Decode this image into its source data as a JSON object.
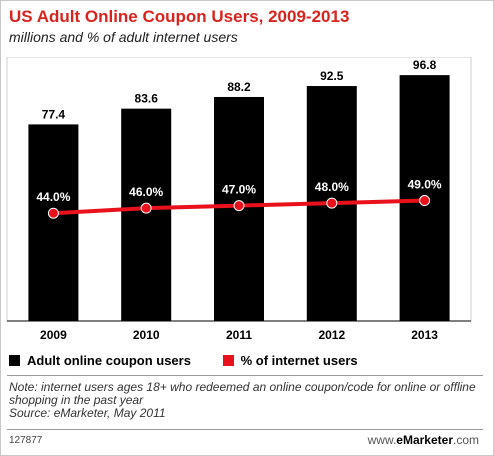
{
  "header": {
    "title": "US Adult Online Coupon Users, 2009-2013",
    "subtitle": "millions and % of adult internet users"
  },
  "chart_data": {
    "type": "bar",
    "categories": [
      "2009",
      "2010",
      "2011",
      "2012",
      "2013"
    ],
    "series": [
      {
        "name": "Adult online coupon users",
        "kind": "bar",
        "values": [
          77.4,
          83.6,
          88.2,
          92.5,
          96.8
        ],
        "labels": [
          "77.4",
          "83.6",
          "88.2",
          "92.5",
          "96.8"
        ],
        "color": "#000000"
      },
      {
        "name": "% of internet users",
        "kind": "line",
        "values": [
          44.0,
          46.0,
          47.0,
          48.0,
          49.0
        ],
        "labels": [
          "44.0%",
          "46.0%",
          "47.0%",
          "48.0%",
          "49.0%"
        ],
        "color": "#e8111c"
      }
    ],
    "bar_ylim": [
      0,
      100
    ],
    "line_ylim": [
      0,
      100
    ],
    "grid": false,
    "legend_position": "bottom-left"
  },
  "legend": {
    "items": [
      {
        "label": "Adult online coupon users",
        "color": "#000000"
      },
      {
        "label": "% of internet users",
        "color": "#e8111c"
      }
    ]
  },
  "note": {
    "text": "Note: internet users ages 18+ who redeemed an online coupon/code for online or offline shopping in the past year",
    "source": "Source: eMarketer, May 2011"
  },
  "footer": {
    "id": "127877",
    "brand_prefix": "www.",
    "brand_name": "eMarketer",
    "brand_suffix": ".com"
  }
}
